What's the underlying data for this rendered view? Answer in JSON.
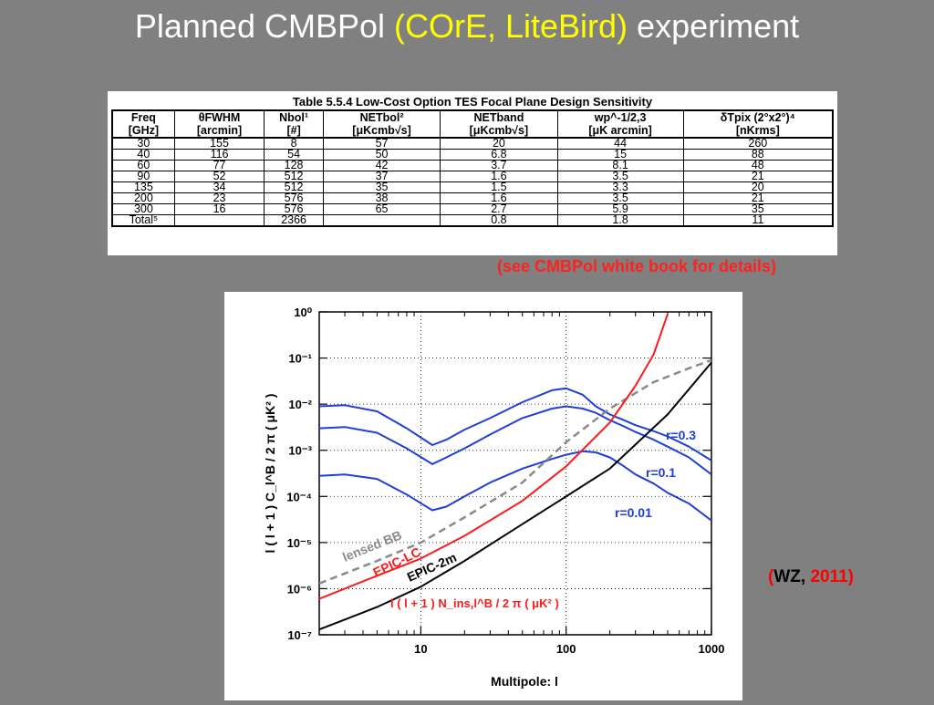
{
  "title": {
    "pre": "Planned CMBPol ",
    "highlight": "(COrE, LiteBird)",
    "post": " experiment"
  },
  "table": {
    "caption": "Table 5.5.4  Low-Cost Option TES Focal Plane Design Sensitivity",
    "headers": [
      [
        "Freq",
        "[GHz]"
      ],
      [
        "θFWHM",
        "[arcmin]"
      ],
      [
        "Nbol¹",
        "[#]"
      ],
      [
        "NETbol²",
        "[μKcmb√s]"
      ],
      [
        "NETband",
        "[μKcmb√s]"
      ],
      [
        "wp^-1/2,3",
        "[μK arcmin]"
      ],
      [
        "δTpix (2°x2°)⁴",
        "[nKrms]"
      ]
    ],
    "rows": [
      [
        "30",
        "155",
        "8",
        "57",
        "20",
        "44",
        "260"
      ],
      [
        "40",
        "116",
        "54",
        "50",
        "6.8",
        "15",
        "88"
      ],
      [
        "60",
        "77",
        "128",
        "42",
        "3.7",
        "8.1",
        "48"
      ],
      [
        "90",
        "52",
        "512",
        "37",
        "1.6",
        "3.5",
        "21"
      ],
      [
        "135",
        "34",
        "512",
        "35",
        "1.5",
        "3.3",
        "20"
      ],
      [
        "200",
        "23",
        "576",
        "38",
        "1.6",
        "3.5",
        "21"
      ],
      [
        "300",
        "16",
        "576",
        "65",
        "2.7",
        "5.9",
        "35"
      ]
    ],
    "total": [
      "Total⁵",
      "",
      "2366",
      "",
      "0.8",
      "1.8",
      "11"
    ]
  },
  "note": "(see CMBPol white book for details)",
  "citation": {
    "open": "(",
    "author": "WZ, ",
    "year": "2011",
    "close": ")"
  },
  "colors": {
    "background": "#808080",
    "title": "#ffffff",
    "highlight": "#ffff00",
    "note": "#ff2020",
    "blue": "#1f3fd6",
    "red": "#ff1a1a",
    "black": "#000000",
    "gray": "#8a8a8a"
  },
  "chart_data": {
    "type": "line",
    "xscale": "log",
    "yscale": "log",
    "xlim": [
      2,
      1000
    ],
    "ylim": [
      1e-07,
      1
    ],
    "xlabel": "Multipole: l",
    "ylabel": "l ( l + 1 ) C_l^B / 2 π ( μK² )",
    "xticks": [
      10,
      100,
      1000
    ],
    "xtick_labels": [
      "10",
      "100",
      "1000"
    ],
    "yticks": [
      1,
      0.1,
      0.01,
      0.001,
      0.0001,
      1e-05,
      1e-06,
      1e-07
    ],
    "ytick_labels": [
      "10⁰",
      "10⁻¹",
      "10⁻²",
      "10⁻³",
      "10⁻⁴",
      "10⁻⁵",
      "10⁻⁶",
      "10⁻⁷"
    ],
    "series": [
      {
        "name": "r=0.3",
        "color": "blue",
        "x": [
          2,
          3,
          5,
          8,
          12,
          15,
          20,
          30,
          50,
          80,
          100,
          130,
          160,
          200,
          250,
          300,
          400,
          500,
          700,
          1000
        ],
        "y": [
          0.009,
          0.0095,
          0.007,
          0.003,
          0.0013,
          0.0017,
          0.0028,
          0.005,
          0.011,
          0.02,
          0.022,
          0.016,
          0.009,
          0.006,
          0.0045,
          0.0035,
          0.0026,
          0.002,
          0.0012,
          0.0006
        ]
      },
      {
        "name": "r=0.1",
        "color": "blue",
        "x": [
          2,
          3,
          5,
          8,
          12,
          15,
          20,
          30,
          50,
          80,
          100,
          130,
          160,
          200,
          250,
          300,
          400,
          500,
          700,
          1000
        ],
        "y": [
          0.003,
          0.0032,
          0.0024,
          0.0011,
          0.0005,
          0.0007,
          0.0011,
          0.0022,
          0.005,
          0.008,
          0.009,
          0.008,
          0.0065,
          0.0045,
          0.0033,
          0.0025,
          0.0017,
          0.0012,
          0.0007,
          0.0003
        ]
      },
      {
        "name": "r=0.01",
        "color": "blue",
        "x": [
          2,
          3,
          5,
          8,
          12,
          15,
          20,
          30,
          50,
          80,
          100,
          130,
          160,
          200,
          250,
          300,
          400,
          500,
          700,
          1000
        ],
        "y": [
          0.00028,
          0.0003,
          0.00024,
          0.00011,
          5e-05,
          6e-05,
          0.0001,
          0.0002,
          0.0004,
          0.00065,
          0.0008,
          0.00095,
          0.0009,
          0.0007,
          0.00045,
          0.0003,
          0.00019,
          0.00012,
          7e-05,
          3e-05
        ]
      },
      {
        "name": "lensed BB",
        "color": "gray",
        "dashed": true,
        "x": [
          2,
          5,
          10,
          20,
          50,
          100,
          200,
          400,
          700,
          1000
        ],
        "y": [
          1.3e-06,
          4e-06,
          1e-05,
          3.5e-05,
          0.0002,
          0.0015,
          0.008,
          0.03,
          0.06,
          0.09
        ]
      },
      {
        "name": "EPIC-LC",
        "color": "red",
        "x": [
          2,
          5,
          10,
          20,
          50,
          100,
          200,
          300,
          400,
          500
        ],
        "y": [
          6e-07,
          1.9e-06,
          4.5e-06,
          1.4e-05,
          8e-05,
          0.00045,
          0.004,
          0.025,
          0.12,
          0.9
        ]
      },
      {
        "name": "EPIC-2m",
        "color": "black",
        "x": [
          2,
          5,
          10,
          20,
          50,
          100,
          200,
          500,
          1000
        ],
        "y": [
          1.3e-07,
          4e-07,
          1.1e-06,
          4e-06,
          2.5e-05,
          0.0001,
          0.0004,
          0.006,
          0.08
        ]
      }
    ],
    "annotations": [
      "lensed BB",
      "EPIC-LC",
      "EPIC-2m",
      "r=0.3",
      "r=0.1",
      "r=0.01",
      "l ( l + 1 ) N_ins,l^B / 2 π ( μK² )"
    ]
  }
}
